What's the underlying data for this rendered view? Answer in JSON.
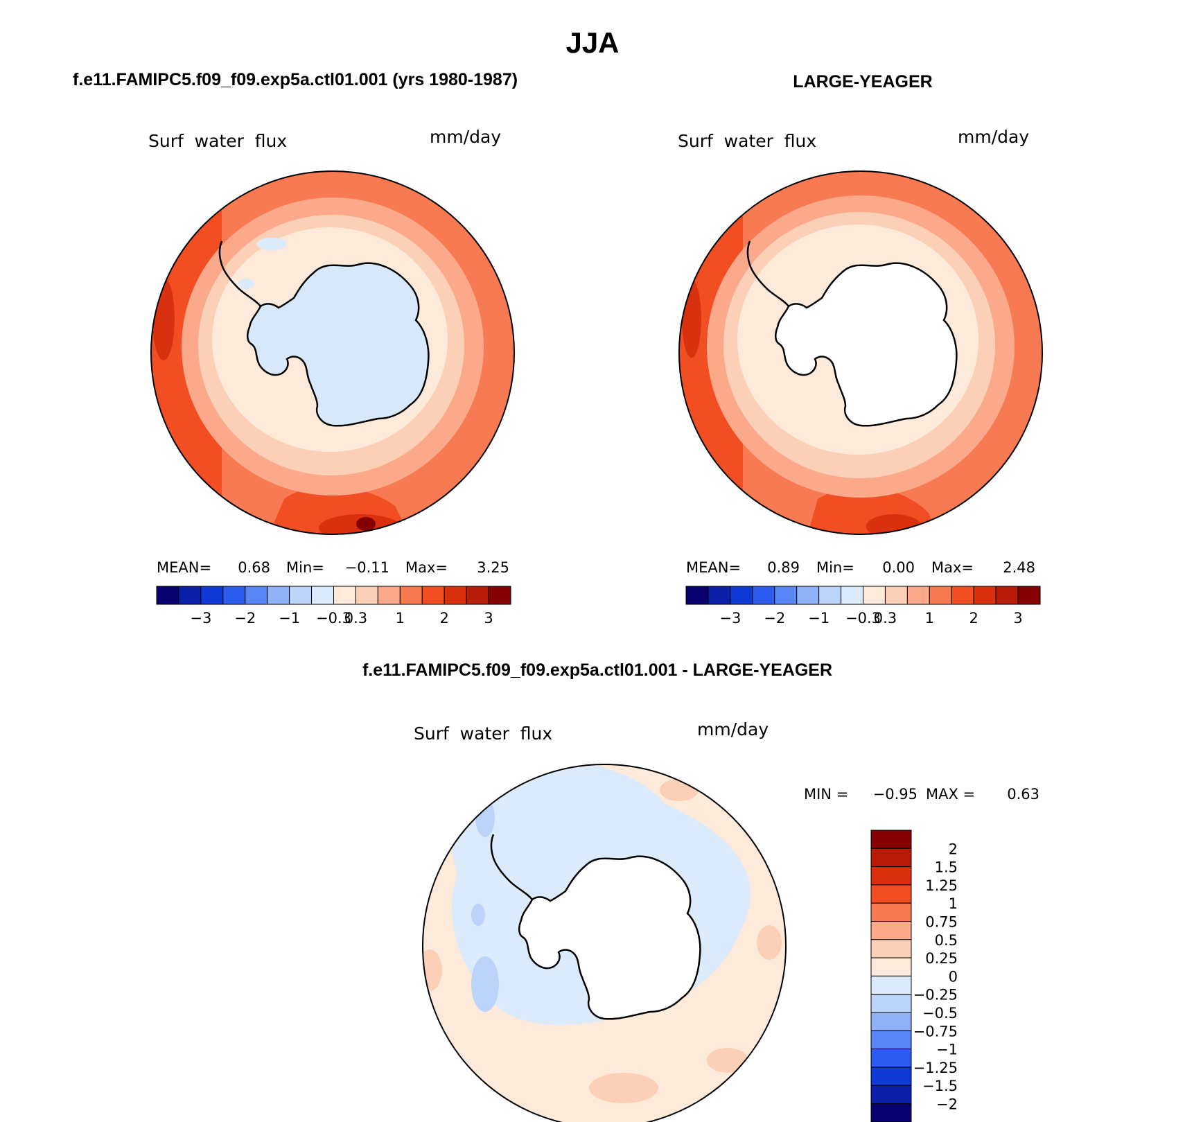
{
  "season": "JJA",
  "panels": [
    {
      "id": "model",
      "header": "f.e11.FAMIPC5.f09_f09.exp5a.ctl01.001 (yrs 1980-1987)",
      "variable": "Surf  water  flux",
      "units": "mm/day",
      "stats": {
        "mean_label": "MEAN=",
        "mean": "0.68",
        "min_label": "Min=",
        "min": "−0.11",
        "max_label": "Max=",
        "max": "3.25"
      },
      "land_color": "#d6e8fa"
    },
    {
      "id": "obs",
      "header": "LARGE-YEAGER",
      "variable": "Surf  water  flux",
      "units": "mm/day",
      "stats": {
        "mean_label": "MEAN=",
        "mean": "0.89",
        "min_label": "Min=",
        "min": "0.00",
        "max_label": "Max=",
        "max": "2.48"
      },
      "land_color": "#ffffff"
    }
  ],
  "shared_colorbar": {
    "colors": [
      "#08006e",
      "#0a1fa8",
      "#0f3ad6",
      "#2c5cf0",
      "#5a86f5",
      "#8fb2f7",
      "#bcd3fa",
      "#dcebfc",
      "#feeada",
      "#fcd0b6",
      "#fba98a",
      "#f87a52",
      "#f24e24",
      "#d93010",
      "#b71c08",
      "#850000"
    ],
    "tick_labels": [
      "−3",
      "−2",
      "−1",
      "−0.3",
      "0.3",
      "1",
      "2",
      "3"
    ]
  },
  "difference": {
    "header": "f.e11.FAMIPC5.f09_f09.exp5a.ctl01.001 - LARGE-YEAGER",
    "variable": "Surf  water  flux",
    "units": "mm/day",
    "min_label": "MIN =",
    "min": "−0.95",
    "max_label": "MAX =",
    "max": "0.63",
    "colorbar": {
      "colors": [
        "#850000",
        "#b71c08",
        "#d93010",
        "#f24e24",
        "#f87a52",
        "#fba98a",
        "#fcd0b6",
        "#feeada",
        "#dcebfc",
        "#bcd3fa",
        "#8fb2f7",
        "#5a86f5",
        "#2c5cf0",
        "#0f3ad6",
        "#0a1fa8",
        "#08006e"
      ],
      "tick_labels": [
        "2",
        "1.5",
        "1.25",
        "1",
        "0.75",
        "0.5",
        "0.25",
        "0",
        "−0.25",
        "−0.5",
        "−0.75",
        "−1",
        "−1.25",
        "−1.5",
        "−2"
      ]
    }
  }
}
